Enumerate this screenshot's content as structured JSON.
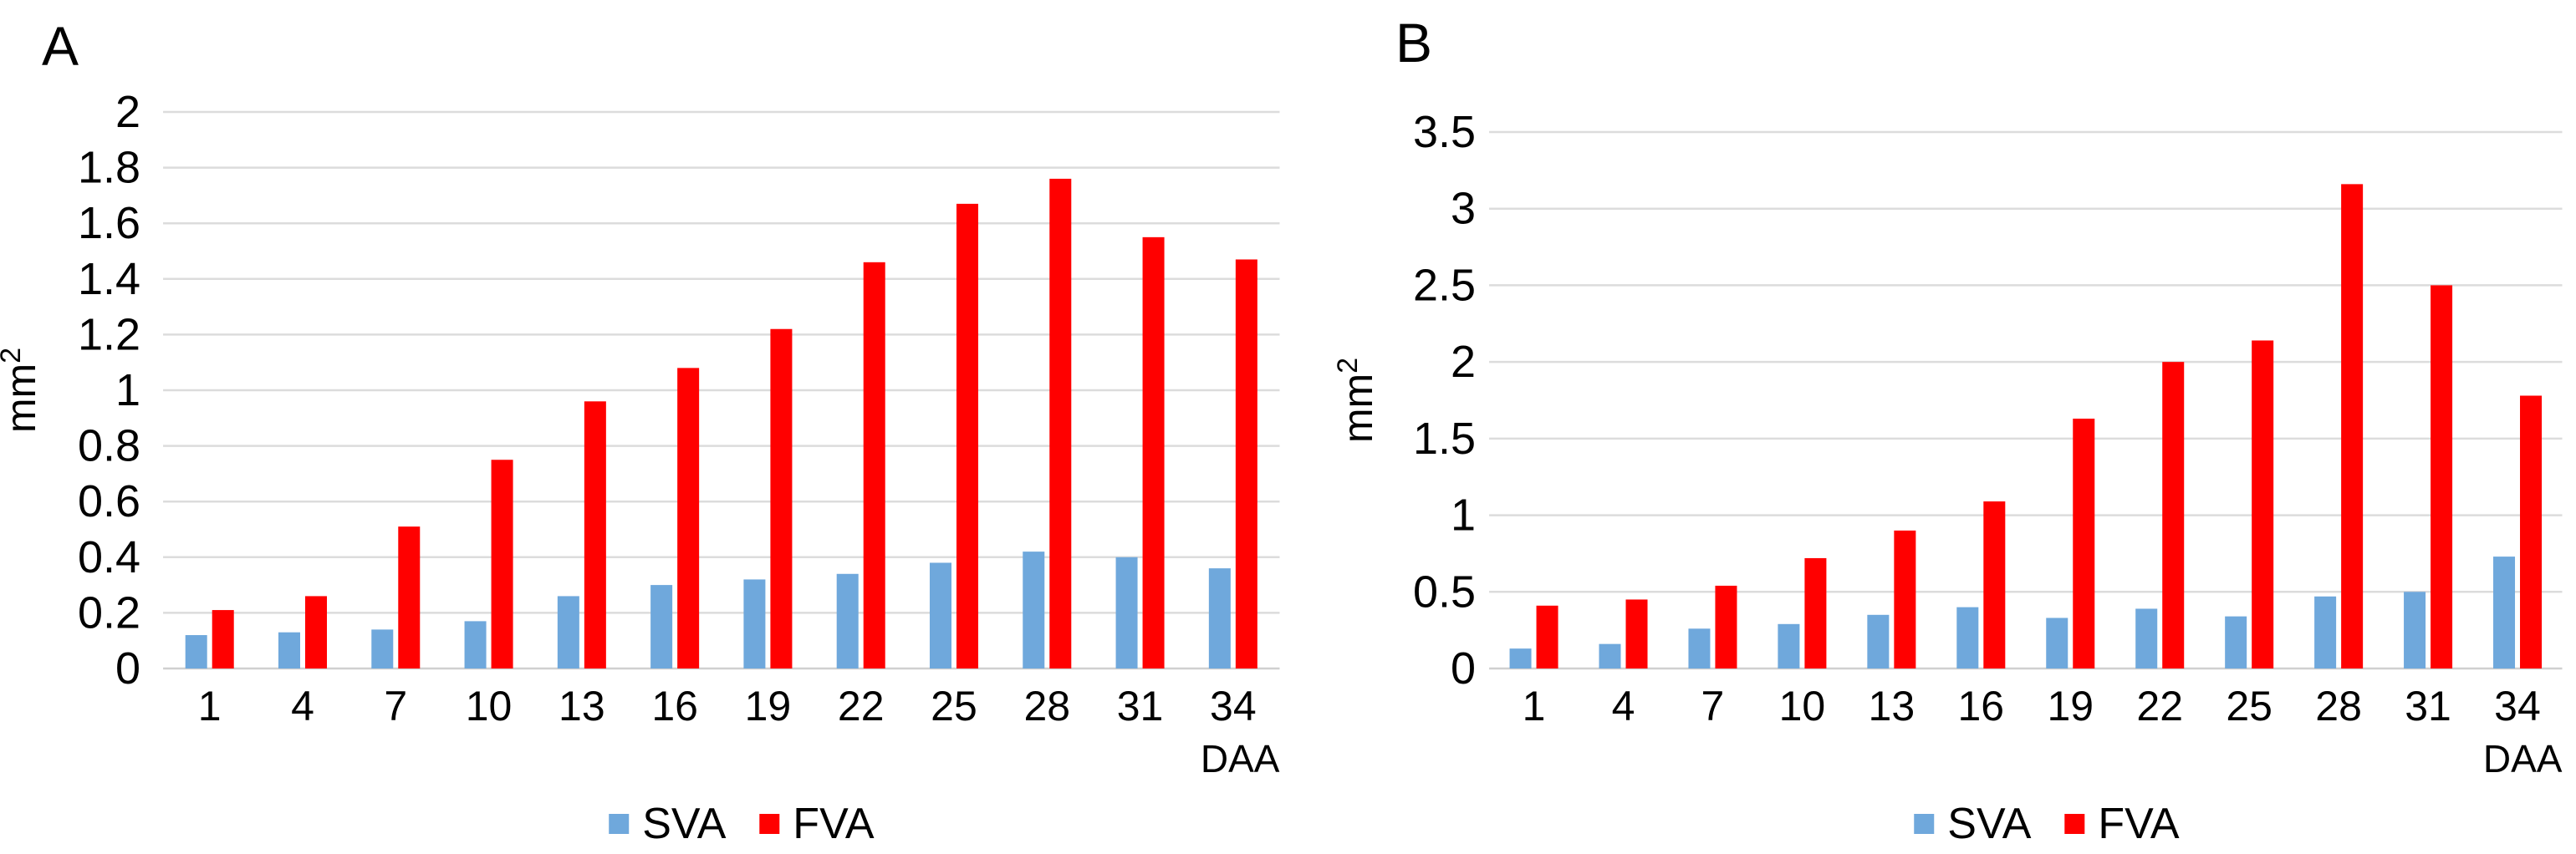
{
  "figure": {
    "panel_labels": [
      "A",
      "B"
    ]
  },
  "chart_data": [
    {
      "type": "bar",
      "panel_label": "A",
      "categories": [
        "1",
        "4",
        "7",
        "10",
        "13",
        "16",
        "19",
        "22",
        "25",
        "28",
        "31",
        "34"
      ],
      "series": [
        {
          "name": "SVA",
          "color": "#6FA8DC",
          "values": [
            0.12,
            0.13,
            0.14,
            0.17,
            0.26,
            0.3,
            0.32,
            0.34,
            0.38,
            0.42,
            0.4,
            0.36
          ]
        },
        {
          "name": "FVA",
          "color": "#FF0000",
          "values": [
            0.21,
            0.26,
            0.51,
            0.75,
            0.96,
            1.08,
            1.22,
            1.46,
            1.67,
            1.76,
            1.55,
            1.47
          ]
        }
      ],
      "xlabel": "DAA",
      "ylabel": "mm²",
      "ylim": [
        0,
        2
      ],
      "yticks": [
        {
          "value": 0,
          "label": "0"
        },
        {
          "value": 0.2,
          "label": "0.2"
        },
        {
          "value": 0.4,
          "label": "0.4"
        },
        {
          "value": 0.6,
          "label": "0.6"
        },
        {
          "value": 0.8,
          "label": "0.8"
        },
        {
          "value": 1,
          "label": "1"
        },
        {
          "value": 1.2,
          "label": "1.2"
        },
        {
          "value": 1.4,
          "label": "1.4"
        },
        {
          "value": 1.6,
          "label": "1.6"
        },
        {
          "value": 1.8,
          "label": "1.8"
        },
        {
          "value": 2,
          "label": "2"
        }
      ],
      "grid": true,
      "legend_position": "bottom",
      "colors": {
        "gridline": "#DCDCDC",
        "axis_line": "#D0D0D0",
        "text": "#000000"
      }
    },
    {
      "type": "bar",
      "panel_label": "B",
      "categories": [
        "1",
        "4",
        "7",
        "10",
        "13",
        "16",
        "19",
        "22",
        "25",
        "28",
        "31",
        "34"
      ],
      "series": [
        {
          "name": "SVA",
          "color": "#6FA8DC",
          "values": [
            0.13,
            0.16,
            0.26,
            0.29,
            0.35,
            0.4,
            0.33,
            0.39,
            0.34,
            0.47,
            0.5,
            0.73
          ]
        },
        {
          "name": "FVA",
          "color": "#FF0000",
          "values": [
            0.41,
            0.45,
            0.54,
            0.72,
            0.9,
            1.09,
            1.63,
            2.0,
            2.14,
            3.16,
            2.5,
            1.78
          ]
        }
      ],
      "xlabel": "DAA",
      "ylabel": "mm²",
      "ylim": [
        0,
        3.5
      ],
      "yticks": [
        {
          "value": 0,
          "label": "0"
        },
        {
          "value": 0.5,
          "label": "0.5"
        },
        {
          "value": 1,
          "label": "1"
        },
        {
          "value": 1.5,
          "label": "1.5"
        },
        {
          "value": 2,
          "label": "2"
        },
        {
          "value": 2.5,
          "label": "2.5"
        },
        {
          "value": 3,
          "label": "3"
        },
        {
          "value": 3.5,
          "label": "3.5"
        }
      ],
      "grid": true,
      "legend_position": "bottom",
      "colors": {
        "gridline": "#DCDCDC",
        "axis_line": "#D0D0D0",
        "text": "#000000"
      }
    }
  ]
}
